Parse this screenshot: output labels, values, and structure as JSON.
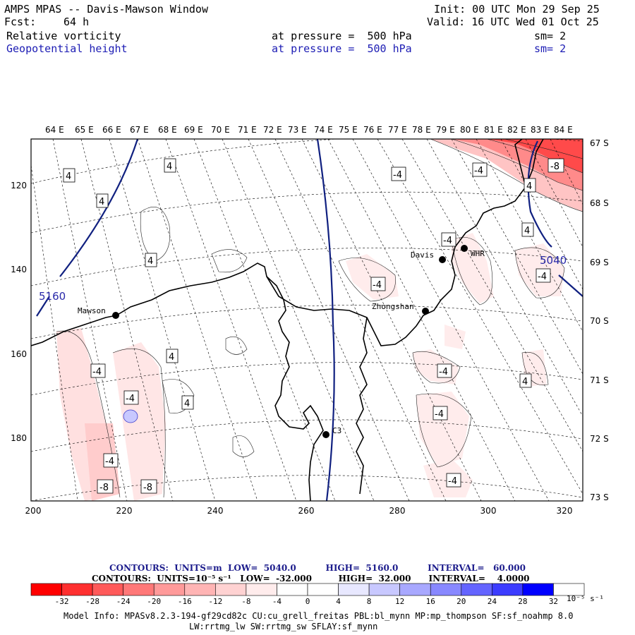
{
  "header": {
    "title": "AMPS MPAS -- Davis-Mawson Window",
    "fcst_label": "Fcst:",
    "fcst_value": "64 h",
    "init": "Init: 00 UTC Mon 29 Sep 25",
    "valid": "Valid: 16 UTC Wed 01 Oct 25",
    "field1": {
      "name": "Relative vorticity",
      "level": "at pressure =  500 hPa",
      "smooth": "sm= 2"
    },
    "field2": {
      "name": "Geopotential height",
      "level": "at pressure =  500 hPa",
      "smooth": "sm= 2"
    }
  },
  "map": {
    "top_lon_labels": [
      "64 E",
      "65 E",
      "66 E",
      "67 E",
      "68 E",
      "69 E",
      "70 E",
      "71 E",
      "72 E",
      "73 E",
      "74 E",
      "75 E",
      "76 E",
      "77 E",
      "78 E",
      "79 E",
      "80 E",
      "81 E",
      "82 E",
      "83 E",
      "84 E"
    ],
    "right_lat_labels": [
      "67 S",
      "68 S",
      "69 S",
      "70 S",
      "71 S",
      "72 S",
      "73 S"
    ],
    "left_y_ticks": [
      "120",
      "140",
      "160",
      "180"
    ],
    "bottom_x_ticks": [
      "200",
      "220",
      "240",
      "260",
      "280",
      "300",
      "320"
    ],
    "stations": [
      "Mawson",
      "Davis",
      "WHR",
      "Zhongshan",
      "C3"
    ],
    "height_labels": [
      "5160",
      "5040"
    ],
    "contour_labels": {
      "pos4": [
        "4",
        "4",
        "4",
        "4",
        "4",
        "4",
        "4",
        "4",
        "4"
      ],
      "neg4": [
        "-4",
        "-4",
        "-4",
        "-4",
        "-4",
        "-4",
        "-4",
        "-4",
        "-4",
        "-4",
        "-4"
      ],
      "neg8": [
        "-8",
        "-8",
        "-8"
      ]
    }
  },
  "legend": {
    "contours1": "CONTOURS:  UNITS=m  LOW=  5040.0          HIGH=  5160.0          INTERVAL=   60.000",
    "contours2": "CONTOURS:  UNITS=10⁻⁵ s⁻¹   LOW=  -32.000         HIGH=  32.000      INTERVAL=    4.0000",
    "colorbar_labels": [
      "-32",
      "-28",
      "-24",
      "-20",
      "-16",
      "-12",
      "-8",
      "-4",
      "0",
      "4",
      "8",
      "12",
      "16",
      "20",
      "24",
      "28",
      "32"
    ],
    "colorbar_units": "10⁻⁵ s⁻¹",
    "colors": [
      "#ff0000",
      "#ff3030",
      "#ff5a5a",
      "#ff7878",
      "#ff9a9a",
      "#ffb4b4",
      "#ffd2d2",
      "#ffecec",
      "#ffffff",
      "#ffffff",
      "#e8e8ff",
      "#c8c8ff",
      "#a8a8ff",
      "#8888ff",
      "#6464ff",
      "#3c3cff",
      "#0000ff"
    ]
  },
  "footer": {
    "line1": "Model Info: MPASv8.2.3-194-gf29cd82c CU:cu_grell_freitas PBL:bl_mynn MP:mp_thompson SF:sf_noahmp 8.0",
    "line2": "LW:rrtmg_lw SW:rrtmg_sw SFLAY:sf_mynn"
  }
}
